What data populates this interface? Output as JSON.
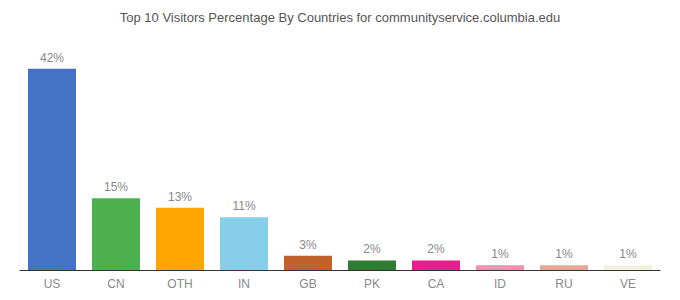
{
  "chart_data": {
    "type": "bar",
    "title": "Top 10 Visitors Percentage By Countries for communityservice.columbia.edu",
    "categories": [
      "US",
      "CN",
      "OTH",
      "IN",
      "GB",
      "PK",
      "CA",
      "ID",
      "RU",
      "VE"
    ],
    "values": [
      42,
      15,
      13,
      11,
      3,
      2,
      2,
      1,
      1,
      1
    ],
    "value_labels": [
      "42%",
      "15%",
      "13%",
      "11%",
      "3%",
      "2%",
      "2%",
      "1%",
      "1%",
      "1%"
    ],
    "data_labels": true,
    "colors": [
      "#4472c4",
      "#4caf50",
      "#ffa500",
      "#87ceeb",
      "#c0622a",
      "#2e7d32",
      "#e91e8c",
      "#f48fb1",
      "#e8a898",
      "#f5f0dc"
    ],
    "ylim": [
      0,
      48
    ],
    "grid": false,
    "tick_labels": "x"
  }
}
